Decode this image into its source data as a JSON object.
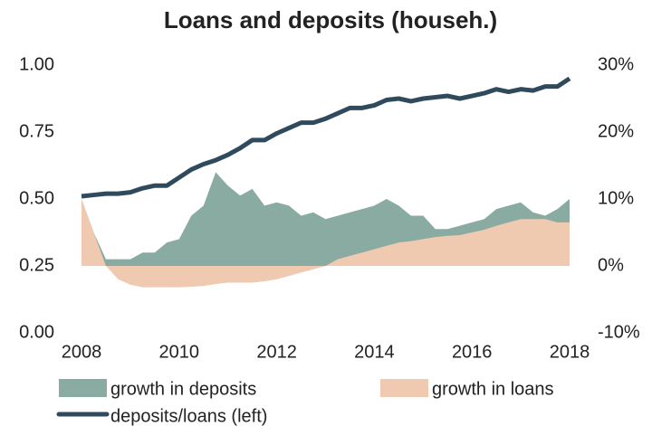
{
  "chart_data": {
    "type": "line",
    "title": "Loans and deposits (househ.)",
    "x": [
      2008.0,
      2008.25,
      2008.5,
      2008.75,
      2009.0,
      2009.25,
      2009.5,
      2009.75,
      2010.0,
      2010.25,
      2010.5,
      2010.75,
      2011.0,
      2011.25,
      2011.5,
      2011.75,
      2012.0,
      2012.25,
      2012.5,
      2012.75,
      2013.0,
      2013.25,
      2013.5,
      2013.75,
      2014.0,
      2014.25,
      2014.5,
      2014.75,
      2015.0,
      2015.25,
      2015.5,
      2015.75,
      2016.0,
      2016.25,
      2016.5,
      2016.75,
      2017.0,
      2017.25,
      2017.5,
      2017.75,
      2018.0
    ],
    "series": [
      {
        "name": "growth in deposits",
        "color": "#8aaba2",
        "axis": "y2",
        "style": "area",
        "values": [
          10,
          5,
          1,
          1,
          1,
          2,
          2,
          3.5,
          4,
          7.5,
          9,
          14,
          12,
          10.5,
          11.5,
          9,
          9.5,
          9,
          7.5,
          8,
          7,
          7.5,
          8,
          8.5,
          9,
          10,
          9,
          7.5,
          7.5,
          5.5,
          5.5,
          6,
          6.5,
          7,
          8.5,
          9,
          9.5,
          8,
          7.5,
          8.5,
          10
        ]
      },
      {
        "name": "growth in loans",
        "color": "#f0c9b1",
        "axis": "y2",
        "style": "area",
        "values": [
          10,
          5,
          0,
          -2,
          -2.8,
          -3.2,
          -3.2,
          -3.2,
          -3.2,
          -3.1,
          -3,
          -2.7,
          -2.5,
          -2.5,
          -2.5,
          -2.3,
          -2,
          -1.5,
          -1,
          -0.5,
          0,
          1,
          1.5,
          2,
          2.5,
          3,
          3.5,
          3.7,
          4,
          4.3,
          4.5,
          4.6,
          5,
          5.4,
          6,
          6.5,
          7,
          7,
          7,
          6.5,
          6.5
        ]
      },
      {
        "name": "deposits/loans (left)",
        "color": "#2e4a5c",
        "axis": "y",
        "style": "line",
        "values": [
          0.51,
          0.515,
          0.52,
          0.52,
          0.525,
          0.54,
          0.55,
          0.55,
          0.58,
          0.61,
          0.63,
          0.645,
          0.665,
          0.69,
          0.72,
          0.72,
          0.745,
          0.765,
          0.785,
          0.785,
          0.8,
          0.82,
          0.84,
          0.84,
          0.85,
          0.87,
          0.875,
          0.865,
          0.875,
          0.88,
          0.885,
          0.875,
          0.885,
          0.895,
          0.91,
          0.9,
          0.91,
          0.905,
          0.92,
          0.92,
          0.95
        ]
      }
    ],
    "xlim": [
      2008,
      2018
    ],
    "xticks": [
      2008,
      2010,
      2012,
      2014,
      2016,
      2018
    ],
    "ylim": [
      0,
      1
    ],
    "yticks": [
      {
        "value": 0,
        "label": "0.00"
      },
      {
        "value": 0.25,
        "label": "0.25"
      },
      {
        "value": 0.5,
        "label": "0.50"
      },
      {
        "value": 0.75,
        "label": "0.75"
      },
      {
        "value": 1,
        "label": "1.00"
      }
    ],
    "y2lim": [
      -10,
      30
    ],
    "y2ticks": [
      {
        "value": -10,
        "label": "-10%"
      },
      {
        "value": 0,
        "label": "0%"
      },
      {
        "value": 10,
        "label": "10%"
      },
      {
        "value": 20,
        "label": "20%"
      },
      {
        "value": 30,
        "label": "30%"
      }
    ],
    "grid": false
  }
}
